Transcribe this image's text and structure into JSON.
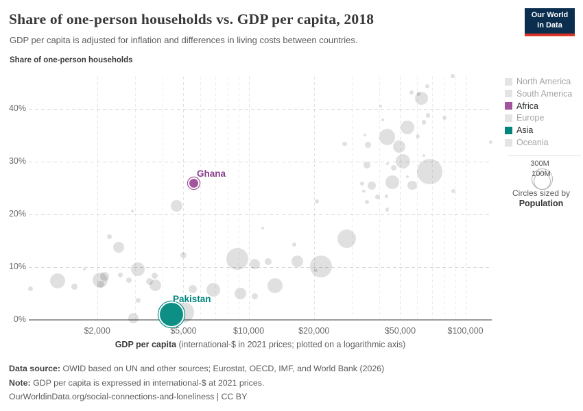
{
  "header": {
    "title": "Share of one-person households vs. GDP per capita, 2018",
    "subtitle": "GDP per capita is adjusted for inflation and differences in living costs between countries."
  },
  "logo": {
    "line1": "Our World",
    "line2": "in Data",
    "bg_color": "#0b2e4f",
    "accent_color": "#dc3426"
  },
  "axes": {
    "y_title": "Share of one-person households",
    "y_ticks": [
      {
        "label": "0%",
        "value": 0
      },
      {
        "label": "10%",
        "value": 10
      },
      {
        "label": "20%",
        "value": 20
      },
      {
        "label": "30%",
        "value": 30
      },
      {
        "label": "40%",
        "value": 40
      }
    ],
    "x_ticks": [
      {
        "label": "$2,000",
        "value": 2000
      },
      {
        "label": "$5,000",
        "value": 5000
      },
      {
        "label": "$10,000",
        "value": 10000
      },
      {
        "label": "$20,000",
        "value": 20000
      },
      {
        "label": "$50,000",
        "value": 50000
      },
      {
        "label": "$100,000",
        "value": 100000
      }
    ],
    "x_minor_gridlines": [
      3000,
      4000,
      6000,
      7000,
      8000,
      9000,
      30000,
      40000,
      60000,
      70000,
      80000,
      90000
    ],
    "x_title_bold": "GDP per capita",
    "x_title_rest": " (international-$ in 2021 prices; plotted on a logarithmic axis)"
  },
  "legend": {
    "items": [
      {
        "label": "North America",
        "color": "#e4e4e4",
        "text_color": "#a5a5a5",
        "active": false
      },
      {
        "label": "South America",
        "color": "#e4e4e4",
        "text_color": "#a5a5a5",
        "active": false
      },
      {
        "label": "Africa",
        "color": "#a2559c",
        "text_color": "#2d2d2d",
        "active": true
      },
      {
        "label": "Europe",
        "color": "#e4e4e4",
        "text_color": "#a5a5a5",
        "active": false
      },
      {
        "label": "Asia",
        "color": "#00847e",
        "text_color": "#2d2d2d",
        "active": true
      },
      {
        "label": "Oceania",
        "color": "#e4e4e4",
        "text_color": "#a5a5a5",
        "active": false
      }
    ],
    "size_legend": {
      "big_label": "300M",
      "small_label": "100M",
      "caption": "Circles sized by",
      "caption_bold": "Population"
    }
  },
  "footer": {
    "source_label": "Data source:",
    "source_text": " OWID based on UN and other sources; Eurostat, OECD, IMF, and World Bank (2026)",
    "note_label": "Note:",
    "note_text": " GDP per capita is expressed in international-$ at 2021 prices.",
    "link_text": "OurWorldinData.org/social-connections-and-loneliness | CC BY"
  },
  "chart_data": {
    "type": "scatter",
    "title": "Share of one-person households vs. GDP per capita, 2018",
    "xlabel": "GDP per capita (international-$ in 2021 prices; plotted on a logarithmic axis)",
    "ylabel": "Share of one-person households",
    "x_scale": "log",
    "xlim": [
      1000,
      130000
    ],
    "ylim": [
      0,
      46
    ],
    "grid": true,
    "legend_position": "right",
    "size_by": "Population",
    "highlighted": [
      {
        "label": "Ghana",
        "continent": "Africa",
        "gdp": 5570,
        "share": 25.9,
        "r": 6.7,
        "color": "#a2559c",
        "label_color": "#883e8c"
      },
      {
        "label": "Pakistan",
        "continent": "Asia",
        "gdp": 4400,
        "share": 1.0,
        "r": 17.3,
        "color": "#0e8f86",
        "label_color": "#00847e"
      }
    ],
    "points": [
      {
        "gdp": 985,
        "share": 5.9,
        "r": 3.5
      },
      {
        "gdp": 1315,
        "share": 7.3,
        "r": 11
      },
      {
        "gdp": 1575,
        "share": 6.3,
        "r": 4.5
      },
      {
        "gdp": 1745,
        "share": 9.6,
        "r": 2.2
      },
      {
        "gdp": 2060,
        "share": 7.5,
        "r": 11
      },
      {
        "gdp": 2160,
        "share": 8.2,
        "r": 6.5
      },
      {
        "gdp": 2075,
        "share": 6.7,
        "r": 5
      },
      {
        "gdp": 2285,
        "share": 15.7,
        "r": 3.5
      },
      {
        "gdp": 2510,
        "share": 13.7,
        "r": 8
      },
      {
        "gdp": 2550,
        "share": 8.4,
        "r": 3.5
      },
      {
        "gdp": 2800,
        "share": 7.5,
        "r": 4
      },
      {
        "gdp": 2905,
        "share": 20.6,
        "r": 2.2
      },
      {
        "gdp": 3080,
        "share": 9.6,
        "r": 10
      },
      {
        "gdp": 2945,
        "share": 0.3,
        "r": 7.5
      },
      {
        "gdp": 3090,
        "share": 3.7,
        "r": 3.5
      },
      {
        "gdp": 3490,
        "share": 7.2,
        "r": 5
      },
      {
        "gdp": 3690,
        "share": 8.3,
        "r": 4.5
      },
      {
        "gdp": 3720,
        "share": 6.5,
        "r": 8.5
      },
      {
        "gdp": 5010,
        "share": 1.4,
        "r": 15
      },
      {
        "gdp": 4640,
        "share": 21.6,
        "r": 8.5
      },
      {
        "gdp": 5020,
        "share": 12.2,
        "r": 4.5
      },
      {
        "gdp": 5530,
        "share": 5.8,
        "r": 6
      },
      {
        "gdp": 6880,
        "share": 5.7,
        "r": 10
      },
      {
        "gdp": 8880,
        "share": 11.5,
        "r": 16
      },
      {
        "gdp": 9150,
        "share": 4.9,
        "r": 8.5
      },
      {
        "gdp": 10700,
        "share": 10.6,
        "r": 7.5
      },
      {
        "gdp": 12300,
        "share": 11.0,
        "r": 5
      },
      {
        "gdp": 10700,
        "share": 4.4,
        "r": 4.5
      },
      {
        "gdp": 11600,
        "share": 17.4,
        "r": 2.2
      },
      {
        "gdp": 13200,
        "share": 6.5,
        "r": 11
      },
      {
        "gdp": 16200,
        "share": 14.2,
        "r": 3
      },
      {
        "gdp": 16800,
        "share": 11.1,
        "r": 8.5
      },
      {
        "gdp": 21500,
        "share": 10.1,
        "r": 16
      },
      {
        "gdp": 20400,
        "share": 9.3,
        "r": 2.2
      },
      {
        "gdp": 28300,
        "share": 15.3,
        "r": 13.5
      },
      {
        "gdp": 20600,
        "share": 22.5,
        "r": 3
      },
      {
        "gdp": 35100,
        "share": 22.3,
        "r": 3
      },
      {
        "gdp": 43500,
        "share": 20.9,
        "r": 2.7
      },
      {
        "gdp": 87300,
        "share": 46.3,
        "r": 2.7
      },
      {
        "gdp": 66600,
        "share": 44.3,
        "r": 3
      },
      {
        "gdp": 56300,
        "share": 43.2,
        "r": 3
      },
      {
        "gdp": 62700,
        "share": 42.0,
        "r": 9.5
      },
      {
        "gdp": 61000,
        "share": 42.9,
        "r": 2.7
      },
      {
        "gdp": 40600,
        "share": 40.5,
        "r": 2
      },
      {
        "gdp": 67100,
        "share": 38.8,
        "r": 3.3
      },
      {
        "gdp": 79800,
        "share": 38.4,
        "r": 3
      },
      {
        "gdp": 41500,
        "share": 37.9,
        "r": 2
      },
      {
        "gdp": 64300,
        "share": 37.5,
        "r": 3.3
      },
      {
        "gdp": 53800,
        "share": 36.5,
        "r": 10
      },
      {
        "gdp": 60100,
        "share": 34.8,
        "r": 3
      },
      {
        "gdp": 43500,
        "share": 34.7,
        "r": 11.7
      },
      {
        "gdp": 34300,
        "share": 35.1,
        "r": 2
      },
      {
        "gdp": 27700,
        "share": 33.4,
        "r": 3.3
      },
      {
        "gdp": 35500,
        "share": 33.2,
        "r": 4.3
      },
      {
        "gdp": 49500,
        "share": 32.9,
        "r": 9.3
      },
      {
        "gdp": 64300,
        "share": 31.2,
        "r": 2.3
      },
      {
        "gdp": 131000,
        "share": 33.7,
        "r": 2.7
      },
      {
        "gdp": 51500,
        "share": 30.1,
        "r": 10.7
      },
      {
        "gdp": 68300,
        "share": 28.1,
        "r": 18.3
      },
      {
        "gdp": 35000,
        "share": 29.4,
        "r": 5
      },
      {
        "gdp": 43700,
        "share": 29.6,
        "r": 2.3
      },
      {
        "gdp": 46800,
        "share": 28.8,
        "r": 4
      },
      {
        "gdp": 54100,
        "share": 27.1,
        "r": 2
      },
      {
        "gdp": 46000,
        "share": 26.1,
        "r": 10
      },
      {
        "gdp": 56800,
        "share": 25.5,
        "r": 6.7
      },
      {
        "gdp": 37100,
        "share": 25.5,
        "r": 6
      },
      {
        "gdp": 33300,
        "share": 25.9,
        "r": 3
      },
      {
        "gdp": 34000,
        "share": 24.4,
        "r": 2.3
      },
      {
        "gdp": 39400,
        "share": 23.3,
        "r": 3.3
      },
      {
        "gdp": 43300,
        "share": 23.4,
        "r": 2.3
      },
      {
        "gdp": 88000,
        "share": 24.4,
        "r": 3.3
      }
    ]
  }
}
